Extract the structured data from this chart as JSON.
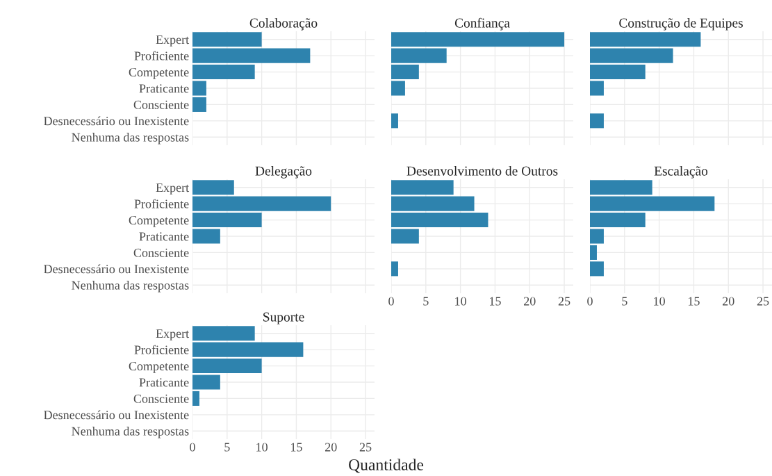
{
  "chart_data": [
    {
      "type": "bar",
      "orientation": "horizontal",
      "title": "Colaboração",
      "categories": [
        "Expert",
        "Proficiente",
        "Competente",
        "Praticante",
        "Consciente",
        "Desnecessário ou Inexistente",
        "Nenhuma das respostas"
      ],
      "series": [
        {
          "color": "#2e83ae",
          "values": [
            10,
            17,
            9,
            2,
            2,
            null,
            null
          ]
        }
      ],
      "xlim": [
        0,
        26.3
      ],
      "xticks": [
        0,
        5,
        10,
        15,
        20,
        25
      ],
      "grid": true,
      "tick_labels": "y"
    },
    {
      "type": "bar",
      "orientation": "horizontal",
      "title": "Confiança",
      "categories": [
        null,
        null,
        null,
        null,
        null,
        null,
        null
      ],
      "series": [
        {
          "color": "#2e83ae",
          "values": [
            25,
            8,
            4,
            2,
            null,
            1,
            null
          ]
        }
      ],
      "xlim": [
        0,
        26.3
      ],
      "xticks": [
        0,
        5,
        10,
        15,
        20,
        25
      ],
      "grid": true,
      "tick_labels": false
    },
    {
      "type": "bar",
      "orientation": "horizontal",
      "title": "Construção de Equipes",
      "categories": [
        null,
        null,
        null,
        null,
        null,
        null,
        null
      ],
      "series": [
        {
          "color": "#2e83ae",
          "values": [
            16,
            12,
            8,
            2,
            null,
            2,
            null
          ]
        }
      ],
      "xlim": [
        0,
        26.3
      ],
      "xticks": [
        0,
        5,
        10,
        15,
        20,
        25
      ],
      "grid": true,
      "tick_labels": false
    },
    {
      "type": "bar",
      "orientation": "horizontal",
      "title": "Delegação",
      "categories": [
        "Expert",
        "Proficiente",
        "Competente",
        "Praticante",
        "Consciente",
        "Desnecessário ou Inexistente",
        "Nenhuma das respostas"
      ],
      "series": [
        {
          "color": "#2e83ae",
          "values": [
            6,
            20,
            10,
            4,
            null,
            null,
            null
          ]
        }
      ],
      "xlim": [
        0,
        26.3
      ],
      "xticks": [
        0,
        5,
        10,
        15,
        20,
        25
      ],
      "grid": true,
      "tick_labels": "y"
    },
    {
      "type": "bar",
      "orientation": "horizontal",
      "title": "Desenvolvimento de Outros",
      "categories": [
        null,
        null,
        null,
        null,
        null,
        null,
        null
      ],
      "series": [
        {
          "color": "#2e83ae",
          "values": [
            9,
            12,
            14,
            4,
            null,
            1,
            null
          ]
        }
      ],
      "xlim": [
        0,
        26.3
      ],
      "xticks": [
        0,
        5,
        10,
        15,
        20,
        25
      ],
      "grid": true,
      "tick_labels": "x"
    },
    {
      "type": "bar",
      "orientation": "horizontal",
      "title": "Escalação",
      "categories": [
        null,
        null,
        null,
        null,
        null,
        null,
        null
      ],
      "series": [
        {
          "color": "#2e83ae",
          "values": [
            9,
            18,
            8,
            2,
            1,
            2,
            null
          ]
        }
      ],
      "xlim": [
        0,
        26.3
      ],
      "xticks": [
        0,
        5,
        10,
        15,
        20,
        25
      ],
      "grid": true,
      "tick_labels": "x"
    },
    {
      "type": "bar",
      "orientation": "horizontal",
      "title": "Suporte",
      "xlabel": "Quantidade",
      "categories": [
        "Expert",
        "Proficiente",
        "Competente",
        "Praticante",
        "Consciente",
        "Desnecessário ou Inexistente",
        "Nenhuma das respostas"
      ],
      "series": [
        {
          "color": "#2e83ae",
          "values": [
            9,
            16,
            10,
            4,
            1,
            null,
            null
          ]
        }
      ],
      "xlim": [
        0,
        26.3
      ],
      "xticks": [
        0,
        5,
        10,
        15,
        20,
        25
      ],
      "grid": true
    }
  ]
}
